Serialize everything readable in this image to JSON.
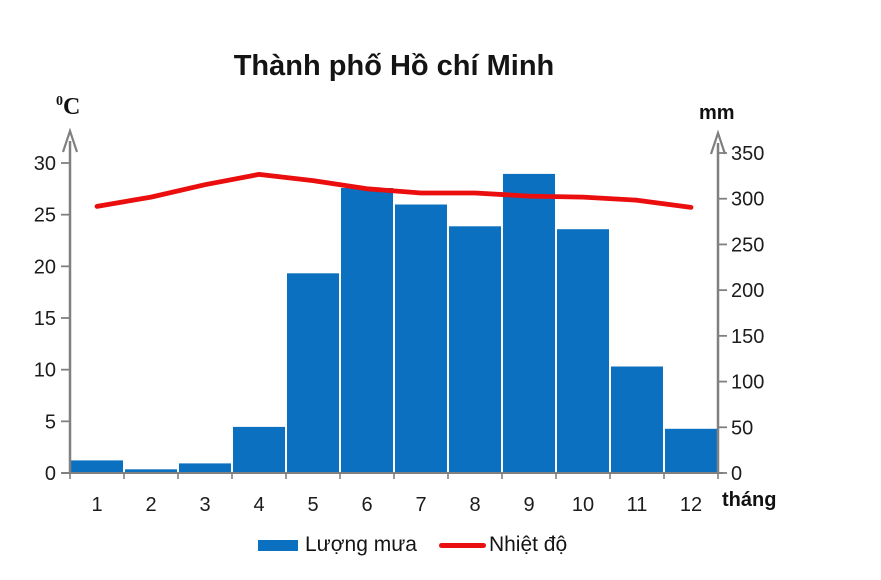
{
  "chart_data": {
    "type": "combo",
    "title": "Thành phố Hồ chí Minh",
    "categories": [
      "1",
      "2",
      "3",
      "4",
      "5",
      "6",
      "7",
      "8",
      "9",
      "10",
      "11",
      "12"
    ],
    "series": [
      {
        "name": "Lượng mưa",
        "type": "bar",
        "axis": "right",
        "unit": "mm",
        "color": "#0b70bf",
        "values": [
          13.8,
          4.1,
          10.5,
          50.4,
          218.4,
          311.7,
          293.7,
          269.8,
          327.1,
          266.7,
          116.5,
          48.3
        ]
      },
      {
        "name": "Nhiệt độ",
        "type": "line",
        "axis": "left",
        "unit": "°C",
        "color": "#ea0e0e",
        "values": [
          25.8,
          26.7,
          27.9,
          28.9,
          28.3,
          27.5,
          27.1,
          27.1,
          26.8,
          26.7,
          26.4,
          25.7
        ]
      }
    ],
    "left_axis": {
      "label_sup": "0",
      "label_base": "C",
      "range": [
        0,
        30
      ],
      "ticks": [
        0,
        5,
        10,
        15,
        20,
        25,
        30
      ]
    },
    "right_axis": {
      "label": "mm",
      "range": [
        0,
        350
      ],
      "ticks": [
        0,
        50,
        100,
        150,
        200,
        250,
        300,
        350
      ]
    },
    "x_axis": {
      "label": "tháng"
    },
    "grid": false,
    "legend_position": "bottom",
    "axis_color": "#808080"
  }
}
